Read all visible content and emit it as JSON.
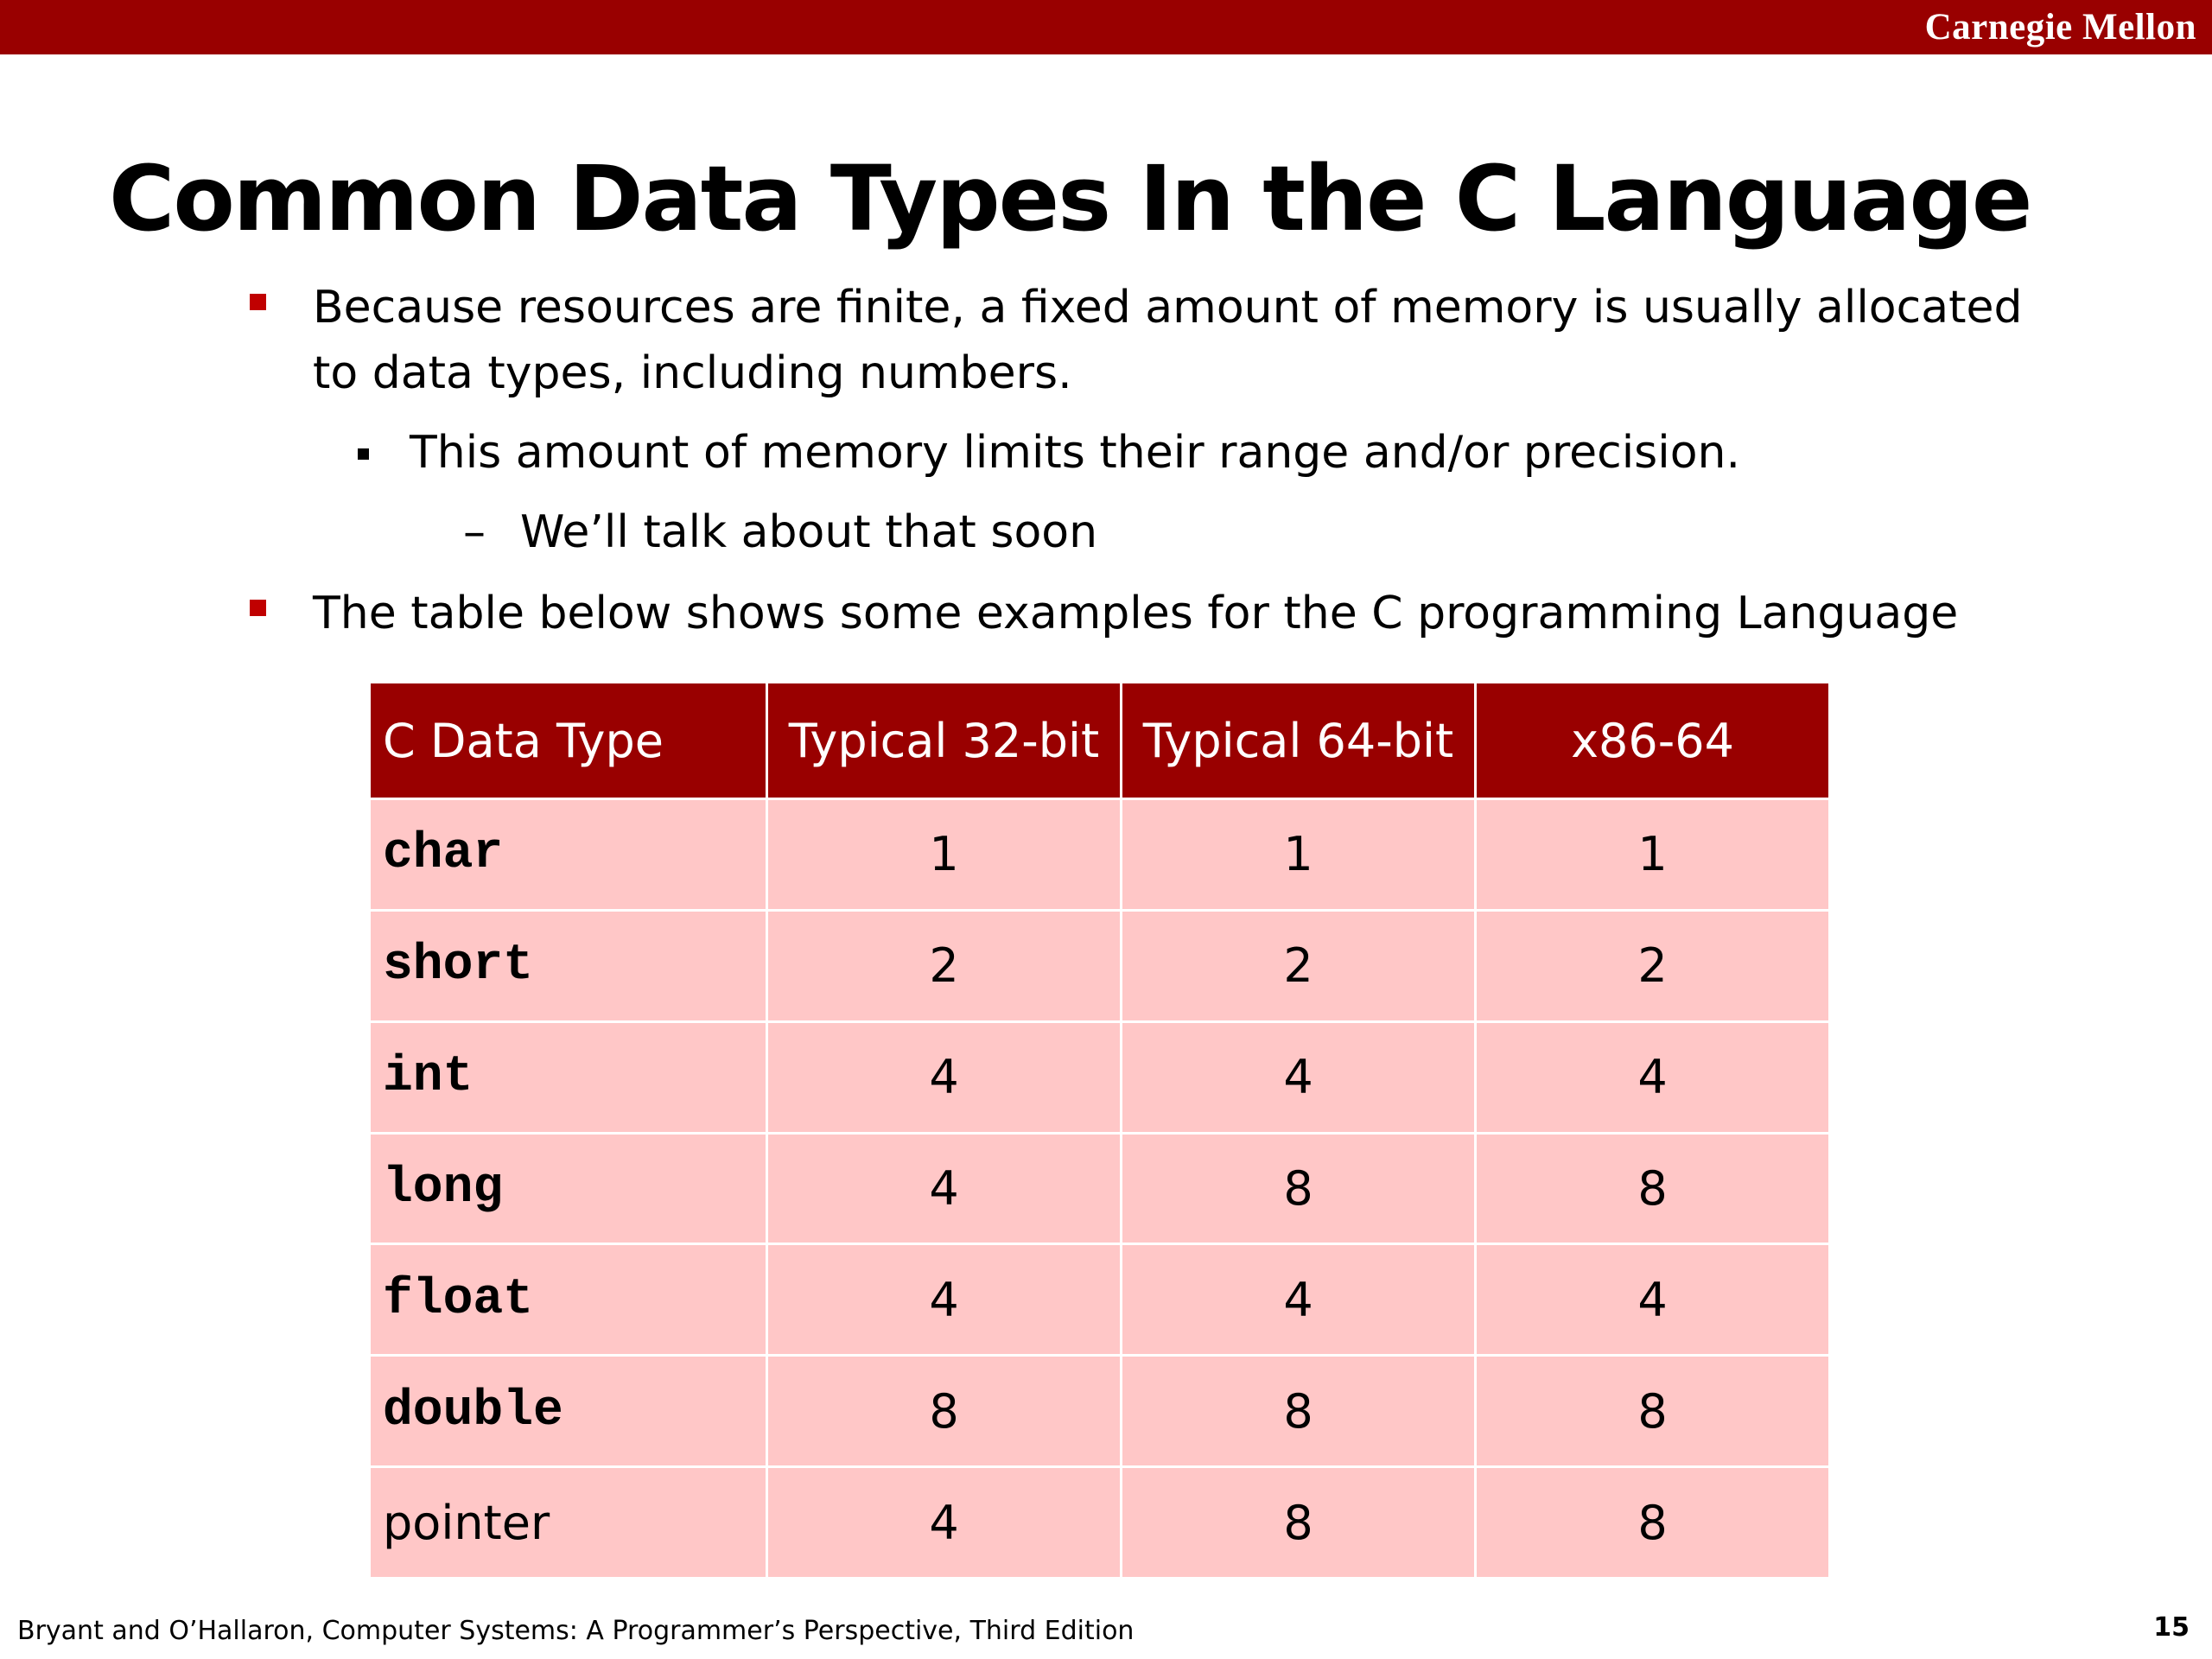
{
  "header": {
    "brand": "Carnegie Mellon"
  },
  "slide": {
    "title": "Common Data Types In the C Language",
    "bullet1_line1": "Because resources are finite, a fixed amount of memory is usually allocated",
    "bullet1_line2": "to data types, including numbers.",
    "sub1": "This amount of memory limits their range and/or precision.",
    "dash_mark": "–",
    "sub2": "We’ll talk about that soon",
    "bullet2": "The table below shows some examples for the C programming Language"
  },
  "table": {
    "headers": [
      "C Data Type",
      "Typical 32-bit",
      "Typical 64-bit",
      "x86-64"
    ],
    "rows": [
      [
        "char",
        "1",
        "1",
        "1"
      ],
      [
        "short",
        "2",
        "2",
        "2"
      ],
      [
        "int",
        "4",
        "4",
        "4"
      ],
      [
        "long",
        "4",
        "8",
        "8"
      ],
      [
        "float",
        "4",
        "4",
        "4"
      ],
      [
        "double",
        "8",
        "8",
        "8"
      ],
      [
        "pointer",
        "4",
        "8",
        "8"
      ]
    ]
  },
  "footer": {
    "citation": "Bryant and O’Hallaron, Computer Systems: A Programmer’s Perspective, Third Edition",
    "page": "15"
  },
  "colors": {
    "brand": "#990000",
    "cell": "#ffc7c7",
    "bullet": "#c00000"
  }
}
